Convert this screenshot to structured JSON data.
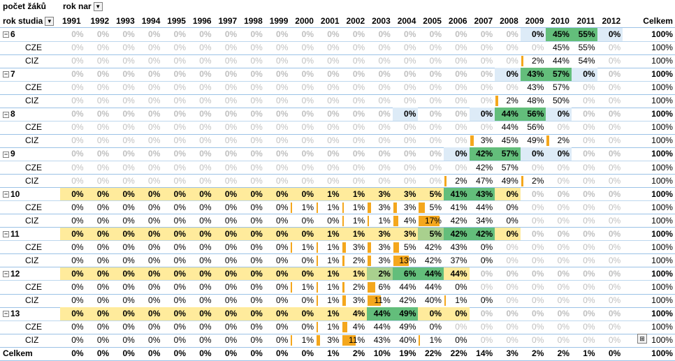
{
  "header": {
    "values_label": "počet žáků",
    "col_field": "rok nar",
    "row_field": "rok studia",
    "total_label": "Celkem",
    "years": [
      "1991",
      "1992",
      "1993",
      "1994",
      "1995",
      "1996",
      "1997",
      "1998",
      "1999",
      "2000",
      "2001",
      "2002",
      "2003",
      "2004",
      "2005",
      "2006",
      "2007",
      "2008",
      "2009",
      "2010",
      "2011",
      "2012"
    ]
  },
  "icons": {
    "filter": "filter-funnel-icon",
    "collapse": "collapse-minus-icon",
    "quick_analysis": "quick-analysis-icon"
  },
  "colors": {
    "bar": "#f4a71d",
    "yellow": "#ffeb9c",
    "green": "#63be7b",
    "light_green": "#a9d08e",
    "blue": "#ddebf7",
    "zero_text": "#bfbfbf"
  },
  "rows": [
    {
      "label": "6",
      "type": "group",
      "cells": [
        "0%",
        "0%",
        "0%",
        "0%",
        "0%",
        "0%",
        "0%",
        "0%",
        "0%",
        "0%",
        "0%",
        "0%",
        "0%",
        "0%",
        "0%",
        "0%",
        "0%",
        "0%",
        "0%",
        "45%",
        "55%",
        "0%",
        "100%"
      ],
      "bg": {
        "18": "b",
        "19": "g",
        "20": "g",
        "21": "b"
      }
    },
    {
      "label": "CZE",
      "type": "sub",
      "cells": [
        "0%",
        "0%",
        "0%",
        "0%",
        "0%",
        "0%",
        "0%",
        "0%",
        "0%",
        "0%",
        "0%",
        "0%",
        "0%",
        "0%",
        "0%",
        "0%",
        "0%",
        "0%",
        "0%",
        "45%",
        "55%",
        "0%",
        "100%"
      ]
    },
    {
      "label": "CIZ",
      "type": "sub",
      "cells": [
        "0%",
        "0%",
        "0%",
        "0%",
        "0%",
        "0%",
        "0%",
        "0%",
        "0%",
        "0%",
        "0%",
        "0%",
        "0%",
        "0%",
        "0%",
        "0%",
        "0%",
        "0%",
        "2%",
        "44%",
        "54%",
        "0%",
        "100%"
      ]
    },
    {
      "label": "7",
      "type": "group",
      "cells": [
        "0%",
        "0%",
        "0%",
        "0%",
        "0%",
        "0%",
        "0%",
        "0%",
        "0%",
        "0%",
        "0%",
        "0%",
        "0%",
        "0%",
        "0%",
        "0%",
        "0%",
        "0%",
        "43%",
        "57%",
        "0%",
        "0%",
        "100%"
      ],
      "bg": {
        "17": "b",
        "18": "g",
        "19": "g",
        "20": "b"
      }
    },
    {
      "label": "CZE",
      "type": "sub",
      "cells": [
        "0%",
        "0%",
        "0%",
        "0%",
        "0%",
        "0%",
        "0%",
        "0%",
        "0%",
        "0%",
        "0%",
        "0%",
        "0%",
        "0%",
        "0%",
        "0%",
        "0%",
        "0%",
        "43%",
        "57%",
        "0%",
        "0%",
        "100%"
      ]
    },
    {
      "label": "CIZ",
      "type": "sub",
      "cells": [
        "0%",
        "0%",
        "0%",
        "0%",
        "0%",
        "0%",
        "0%",
        "0%",
        "0%",
        "0%",
        "0%",
        "0%",
        "0%",
        "0%",
        "0%",
        "0%",
        "0%",
        "2%",
        "48%",
        "50%",
        "0%",
        "0%",
        "100%"
      ]
    },
    {
      "label": "8",
      "type": "group",
      "cells": [
        "0%",
        "0%",
        "0%",
        "0%",
        "0%",
        "0%",
        "0%",
        "0%",
        "0%",
        "0%",
        "0%",
        "0%",
        "0%",
        "0%",
        "0%",
        "0%",
        "0%",
        "44%",
        "56%",
        "0%",
        "0%",
        "0%",
        "100%"
      ],
      "bg": {
        "13": "b",
        "16": "b",
        "17": "g",
        "18": "g",
        "19": "b"
      }
    },
    {
      "label": "CZE",
      "type": "sub",
      "cells": [
        "0%",
        "0%",
        "0%",
        "0%",
        "0%",
        "0%",
        "0%",
        "0%",
        "0%",
        "0%",
        "0%",
        "0%",
        "0%",
        "0%",
        "0%",
        "0%",
        "0%",
        "44%",
        "56%",
        "0%",
        "0%",
        "0%",
        "100%"
      ]
    },
    {
      "label": "CIZ",
      "type": "sub",
      "cells": [
        "0%",
        "0%",
        "0%",
        "0%",
        "0%",
        "0%",
        "0%",
        "0%",
        "0%",
        "0%",
        "0%",
        "0%",
        "0%",
        "0%",
        "0%",
        "0%",
        "3%",
        "45%",
        "49%",
        "2%",
        "0%",
        "0%",
        "100%"
      ]
    },
    {
      "label": "9",
      "type": "group",
      "cells": [
        "0%",
        "0%",
        "0%",
        "0%",
        "0%",
        "0%",
        "0%",
        "0%",
        "0%",
        "0%",
        "0%",
        "0%",
        "0%",
        "0%",
        "0%",
        "0%",
        "42%",
        "57%",
        "0%",
        "0%",
        "0%",
        "0%",
        "100%"
      ],
      "bg": {
        "15": "b",
        "16": "g",
        "17": "g",
        "18": "b",
        "19": "b"
      }
    },
    {
      "label": "CZE",
      "type": "sub",
      "cells": [
        "0%",
        "0%",
        "0%",
        "0%",
        "0%",
        "0%",
        "0%",
        "0%",
        "0%",
        "0%",
        "0%",
        "0%",
        "0%",
        "0%",
        "0%",
        "0%",
        "42%",
        "57%",
        "0%",
        "0%",
        "0%",
        "0%",
        "100%"
      ]
    },
    {
      "label": "CIZ",
      "type": "sub",
      "cells": [
        "0%",
        "0%",
        "0%",
        "0%",
        "0%",
        "0%",
        "0%",
        "0%",
        "0%",
        "0%",
        "0%",
        "0%",
        "0%",
        "0%",
        "0%",
        "2%",
        "47%",
        "49%",
        "2%",
        "0%",
        "0%",
        "0%",
        "100%"
      ]
    },
    {
      "label": "10",
      "type": "group",
      "cells": [
        "0%",
        "0%",
        "0%",
        "0%",
        "0%",
        "0%",
        "0%",
        "0%",
        "0%",
        "0%",
        "1%",
        "1%",
        "3%",
        "3%",
        "5%",
        "41%",
        "43%",
        "0%",
        "0%",
        "0%",
        "0%",
        "0%",
        "100%"
      ],
      "bg": {
        "0": "y",
        "1": "y",
        "2": "y",
        "3": "y",
        "4": "y",
        "5": "y",
        "6": "y",
        "7": "y",
        "8": "y",
        "9": "y",
        "10": "y",
        "11": "y",
        "12": "y",
        "13": "y",
        "14": "y",
        "15": "g",
        "16": "g",
        "17": "y"
      }
    },
    {
      "label": "CZE",
      "type": "sub",
      "cells": [
        "0%",
        "0%",
        "0%",
        "0%",
        "0%",
        "0%",
        "0%",
        "0%",
        "0%",
        "1%",
        "1%",
        "1%",
        "3%",
        "3%",
        "5%",
        "41%",
        "44%",
        "0%",
        "0%",
        "0%",
        "0%",
        "0%",
        "100%"
      ]
    },
    {
      "label": "CIZ",
      "type": "sub",
      "cells": [
        "0%",
        "0%",
        "0%",
        "0%",
        "0%",
        "0%",
        "0%",
        "0%",
        "0%",
        "0%",
        "0%",
        "1%",
        "1%",
        "4%",
        "17%",
        "42%",
        "34%",
        "0%",
        "0%",
        "0%",
        "0%",
        "0%",
        "100%"
      ]
    },
    {
      "label": "11",
      "type": "group",
      "cells": [
        "0%",
        "0%",
        "0%",
        "0%",
        "0%",
        "0%",
        "0%",
        "0%",
        "0%",
        "0%",
        "1%",
        "1%",
        "3%",
        "3%",
        "5%",
        "42%",
        "42%",
        "0%",
        "0%",
        "0%",
        "0%",
        "0%",
        "100%"
      ],
      "bg": {
        "0": "y",
        "1": "y",
        "2": "y",
        "3": "y",
        "4": "y",
        "5": "y",
        "6": "y",
        "7": "y",
        "8": "y",
        "9": "y",
        "10": "y",
        "11": "y",
        "12": "y",
        "13": "y",
        "14": "lg",
        "15": "g",
        "16": "g",
        "17": "y"
      }
    },
    {
      "label": "CZE",
      "type": "sub",
      "cells": [
        "0%",
        "0%",
        "0%",
        "0%",
        "0%",
        "0%",
        "0%",
        "0%",
        "0%",
        "1%",
        "1%",
        "3%",
        "3%",
        "5%",
        "42%",
        "43%",
        "0%",
        "0%",
        "0%",
        "0%",
        "0%",
        "0%",
        "100%"
      ]
    },
    {
      "label": "CIZ",
      "type": "sub",
      "cells": [
        "0%",
        "0%",
        "0%",
        "0%",
        "0%",
        "0%",
        "0%",
        "0%",
        "0%",
        "0%",
        "1%",
        "2%",
        "3%",
        "13%",
        "42%",
        "37%",
        "0%",
        "0%",
        "0%",
        "0%",
        "0%",
        "0%",
        "100%"
      ]
    },
    {
      "label": "12",
      "type": "group",
      "cells": [
        "0%",
        "0%",
        "0%",
        "0%",
        "0%",
        "0%",
        "0%",
        "0%",
        "0%",
        "0%",
        "1%",
        "1%",
        "2%",
        "6%",
        "44%",
        "44%",
        "0%",
        "0%",
        "0%",
        "0%",
        "0%",
        "0%",
        "100%"
      ],
      "bg": {
        "0": "y",
        "1": "y",
        "2": "y",
        "3": "y",
        "4": "y",
        "5": "y",
        "6": "y",
        "7": "y",
        "8": "y",
        "9": "y",
        "10": "y",
        "11": "y",
        "12": "lg",
        "13": "g",
        "14": "g",
        "15": "y"
      }
    },
    {
      "label": "CZE",
      "type": "sub",
      "cells": [
        "0%",
        "0%",
        "0%",
        "0%",
        "0%",
        "0%",
        "0%",
        "0%",
        "0%",
        "1%",
        "1%",
        "2%",
        "6%",
        "44%",
        "44%",
        "0%",
        "0%",
        "0%",
        "0%",
        "0%",
        "0%",
        "0%",
        "100%"
      ]
    },
    {
      "label": "CIZ",
      "type": "sub",
      "cells": [
        "0%",
        "0%",
        "0%",
        "0%",
        "0%",
        "0%",
        "0%",
        "0%",
        "0%",
        "0%",
        "1%",
        "3%",
        "11%",
        "42%",
        "40%",
        "1%",
        "0%",
        "0%",
        "0%",
        "0%",
        "0%",
        "0%",
        "100%"
      ]
    },
    {
      "label": "13",
      "type": "group",
      "cells": [
        "0%",
        "0%",
        "0%",
        "0%",
        "0%",
        "0%",
        "0%",
        "0%",
        "0%",
        "0%",
        "1%",
        "4%",
        "44%",
        "49%",
        "0%",
        "0%",
        "0%",
        "0%",
        "0%",
        "0%",
        "0%",
        "0%",
        "100%"
      ],
      "bg": {
        "0": "y",
        "1": "y",
        "2": "y",
        "3": "y",
        "4": "y",
        "5": "y",
        "6": "y",
        "7": "y",
        "8": "y",
        "9": "y",
        "10": "y",
        "11": "y",
        "12": "g",
        "13": "g",
        "14": "y",
        "15": "y"
      }
    },
    {
      "label": "CZE",
      "type": "sub",
      "cells": [
        "0%",
        "0%",
        "0%",
        "0%",
        "0%",
        "0%",
        "0%",
        "0%",
        "0%",
        "0%",
        "1%",
        "4%",
        "44%",
        "49%",
        "0%",
        "0%",
        "0%",
        "0%",
        "0%",
        "0%",
        "0%",
        "0%",
        "100%"
      ]
    },
    {
      "label": "CIZ",
      "type": "sub",
      "cells": [
        "0%",
        "0%",
        "0%",
        "0%",
        "0%",
        "0%",
        "0%",
        "0%",
        "0%",
        "1%",
        "3%",
        "11%",
        "43%",
        "40%",
        "1%",
        "0%",
        "0%",
        "0%",
        "0%",
        "0%",
        "0%",
        "0%",
        "100%"
      ]
    },
    {
      "label": "Celkem",
      "type": "total",
      "cells": [
        "0%",
        "0%",
        "0%",
        "0%",
        "0%",
        "0%",
        "0%",
        "0%",
        "0%",
        "0%",
        "1%",
        "2%",
        "10%",
        "19%",
        "22%",
        "22%",
        "14%",
        "3%",
        "2%",
        "2%",
        "1%",
        "0%",
        "100%"
      ]
    }
  ]
}
